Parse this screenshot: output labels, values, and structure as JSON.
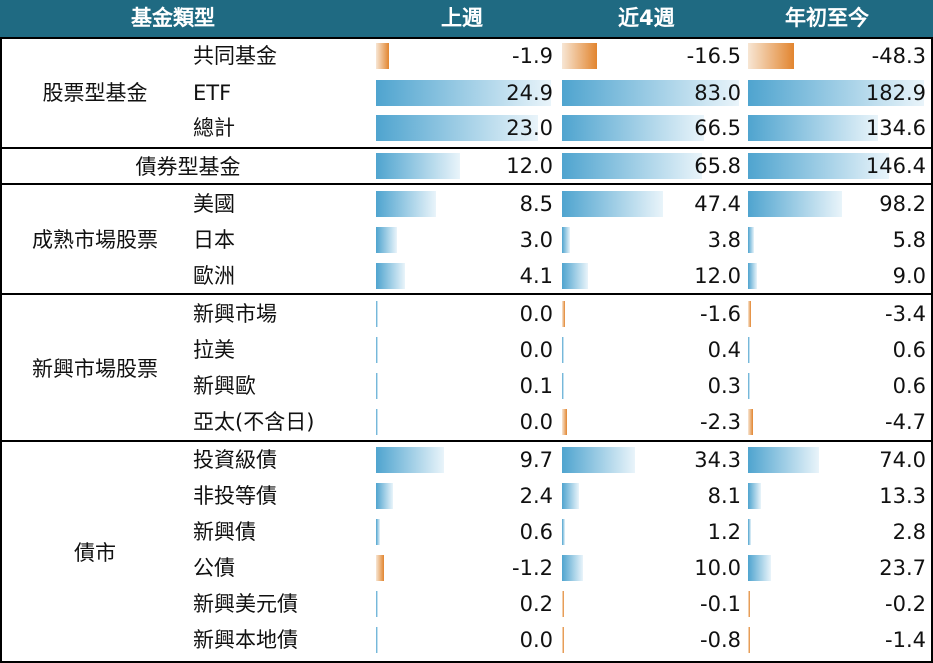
{
  "header": {
    "col_name": "基金類型",
    "col_week": "上週",
    "col_4wk": "近4週",
    "col_ytd": "年初至今"
  },
  "groups": [
    {
      "name": "股票型基金",
      "rows": [
        {
          "label": "共同基金",
          "week": "-1.9",
          "wk4": "-16.5",
          "ytd": "-48.3"
        },
        {
          "label": "ETF",
          "week": "24.9",
          "wk4": "83.0",
          "ytd": "182.9"
        },
        {
          "label": "總計",
          "week": "23.0",
          "wk4": "66.5",
          "ytd": "134.6"
        }
      ]
    },
    {
      "name": "債券型基金",
      "rows": [
        {
          "label": "",
          "week": "12.0",
          "wk4": "65.8",
          "ytd": "146.4"
        }
      ]
    },
    {
      "name": "成熟市場股票",
      "rows": [
        {
          "label": "美國",
          "week": "8.5",
          "wk4": "47.4",
          "ytd": "98.2"
        },
        {
          "label": "日本",
          "week": "3.0",
          "wk4": "3.8",
          "ytd": "5.8"
        },
        {
          "label": "歐洲",
          "week": "4.1",
          "wk4": "12.0",
          "ytd": "9.0"
        }
      ]
    },
    {
      "name": "新興市場股票",
      "rows": [
        {
          "label": "新興市場",
          "week": "0.0",
          "wk4": "-1.6",
          "ytd": "-3.4"
        },
        {
          "label": "拉美",
          "week": "0.0",
          "wk4": "0.4",
          "ytd": "0.6"
        },
        {
          "label": "新興歐",
          "week": "0.1",
          "wk4": "0.3",
          "ytd": "0.6"
        },
        {
          "label": "亞太(不含日)",
          "week": "0.0",
          "wk4": "-2.3",
          "ytd": "-4.7"
        }
      ]
    },
    {
      "name": "債市",
      "rows": [
        {
          "label": "投資級債",
          "week": "9.7",
          "wk4": "34.3",
          "ytd": "74.0"
        },
        {
          "label": "非投等債",
          "week": "2.4",
          "wk4": "8.1",
          "ytd": "13.3"
        },
        {
          "label": "新興債",
          "week": "0.6",
          "wk4": "1.2",
          "ytd": "2.8"
        },
        {
          "label": "公債",
          "week": "-1.2",
          "wk4": "10.0",
          "ytd": "23.7"
        },
        {
          "label": "新興美元債",
          "week": "0.2",
          "wk4": "-0.1",
          "ytd": "-0.2"
        },
        {
          "label": "新興本地債",
          "week": "0.0",
          "wk4": "-0.8",
          "ytd": "-1.4"
        }
      ]
    }
  ],
  "colors": {
    "header_bg": "#1f6a82",
    "positive_bar": "#4fa4cf",
    "negative_bar": "#e2852f"
  }
}
